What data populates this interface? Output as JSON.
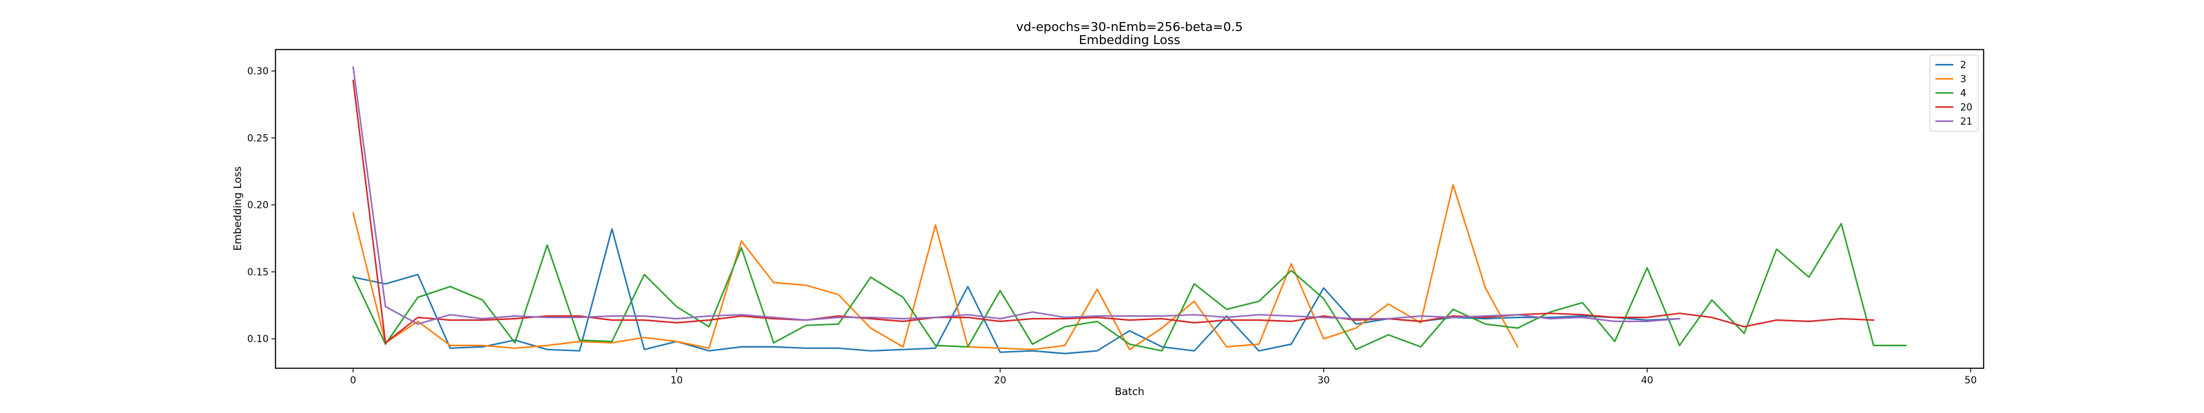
{
  "chart_data": {
    "type": "line",
    "title": "vd-epochs=30-nEmb=256-beta=0.5",
    "subtitle": "Embedding Loss",
    "xlabel": "Batch",
    "ylabel": "Embedding Loss",
    "xlim": [
      -2.4,
      50.4
    ],
    "ylim": [
      0.078,
      0.316
    ],
    "xticks": [
      0,
      10,
      20,
      30,
      40,
      50
    ],
    "yticks": [
      0.1,
      0.15,
      0.2,
      0.25,
      0.3
    ],
    "xtick_labels": [
      "0",
      "10",
      "20",
      "30",
      "40",
      "50"
    ],
    "ytick_labels": [
      "0.10",
      "0.15",
      "0.20",
      "0.25",
      "0.30"
    ],
    "grid": false,
    "legend_position": "top-right",
    "series": [
      {
        "name": "2",
        "color": "#1f77b4",
        "values": [
          0.146,
          0.141,
          0.148,
          0.093,
          0.094,
          0.099,
          0.092,
          0.091,
          0.182,
          0.092,
          0.098,
          0.091,
          0.094,
          0.094,
          0.093,
          0.093,
          0.091,
          0.092,
          0.093,
          0.139,
          0.09,
          0.091,
          0.089,
          0.091,
          0.106,
          0.094,
          0.091,
          0.117,
          0.091,
          0.096,
          0.138,
          0.111,
          0.115,
          0.113,
          0.116,
          0.115,
          0.116,
          0.116,
          0.117,
          0.116,
          0.114,
          0.115
        ]
      },
      {
        "name": "3",
        "color": "#ff7f0e",
        "values": [
          0.194,
          0.097,
          0.113,
          0.095,
          0.095,
          0.093,
          0.095,
          0.098,
          0.097,
          0.101,
          0.098,
          0.093,
          0.173,
          0.142,
          0.14,
          0.133,
          0.108,
          0.094,
          0.185,
          0.094,
          0.093,
          0.092,
          0.095,
          0.137,
          0.092,
          0.108,
          0.128,
          0.094,
          0.096,
          0.156,
          0.1,
          0.108,
          0.126,
          0.112,
          0.215,
          0.138,
          0.094
        ]
      },
      {
        "name": "4",
        "color": "#2ca02c",
        "values": [
          0.147,
          0.096,
          0.131,
          0.139,
          0.129,
          0.097,
          0.17,
          0.099,
          0.098,
          0.148,
          0.124,
          0.109,
          0.168,
          0.097,
          0.11,
          0.111,
          0.146,
          0.131,
          0.095,
          0.094,
          0.136,
          0.096,
          0.109,
          0.113,
          0.096,
          0.091,
          0.141,
          0.122,
          0.128,
          0.151,
          0.13,
          0.092,
          0.103,
          0.094,
          0.122,
          0.111,
          0.108,
          0.12,
          0.127,
          0.098,
          0.153,
          0.095,
          0.129,
          0.104,
          0.167,
          0.146,
          0.186,
          0.095,
          0.095
        ]
      },
      {
        "name": "20",
        "color": "#d62728",
        "values": [
          0.293,
          0.097,
          0.116,
          0.114,
          0.114,
          0.115,
          0.117,
          0.117,
          0.114,
          0.114,
          0.112,
          0.114,
          0.117,
          0.115,
          0.114,
          0.117,
          0.115,
          0.113,
          0.116,
          0.116,
          0.113,
          0.115,
          0.115,
          0.116,
          0.114,
          0.115,
          0.112,
          0.114,
          0.114,
          0.113,
          0.117,
          0.114,
          0.115,
          0.113,
          0.117,
          0.116,
          0.118,
          0.119,
          0.118,
          0.116,
          0.116,
          0.119,
          0.116,
          0.109,
          0.114,
          0.113,
          0.115,
          0.114
        ]
      },
      {
        "name": "21",
        "color": "#9467bd",
        "values": [
          0.303,
          0.124,
          0.111,
          0.118,
          0.115,
          0.117,
          0.116,
          0.116,
          0.117,
          0.117,
          0.115,
          0.117,
          0.118,
          0.116,
          0.114,
          0.116,
          0.116,
          0.115,
          0.116,
          0.118,
          0.115,
          0.12,
          0.116,
          0.117,
          0.117,
          0.117,
          0.118,
          0.116,
          0.118,
          0.117,
          0.116,
          0.115,
          0.115,
          0.117,
          0.116,
          0.117,
          0.118,
          0.115,
          0.116,
          0.113,
          0.113,
          0.115
        ]
      }
    ]
  }
}
